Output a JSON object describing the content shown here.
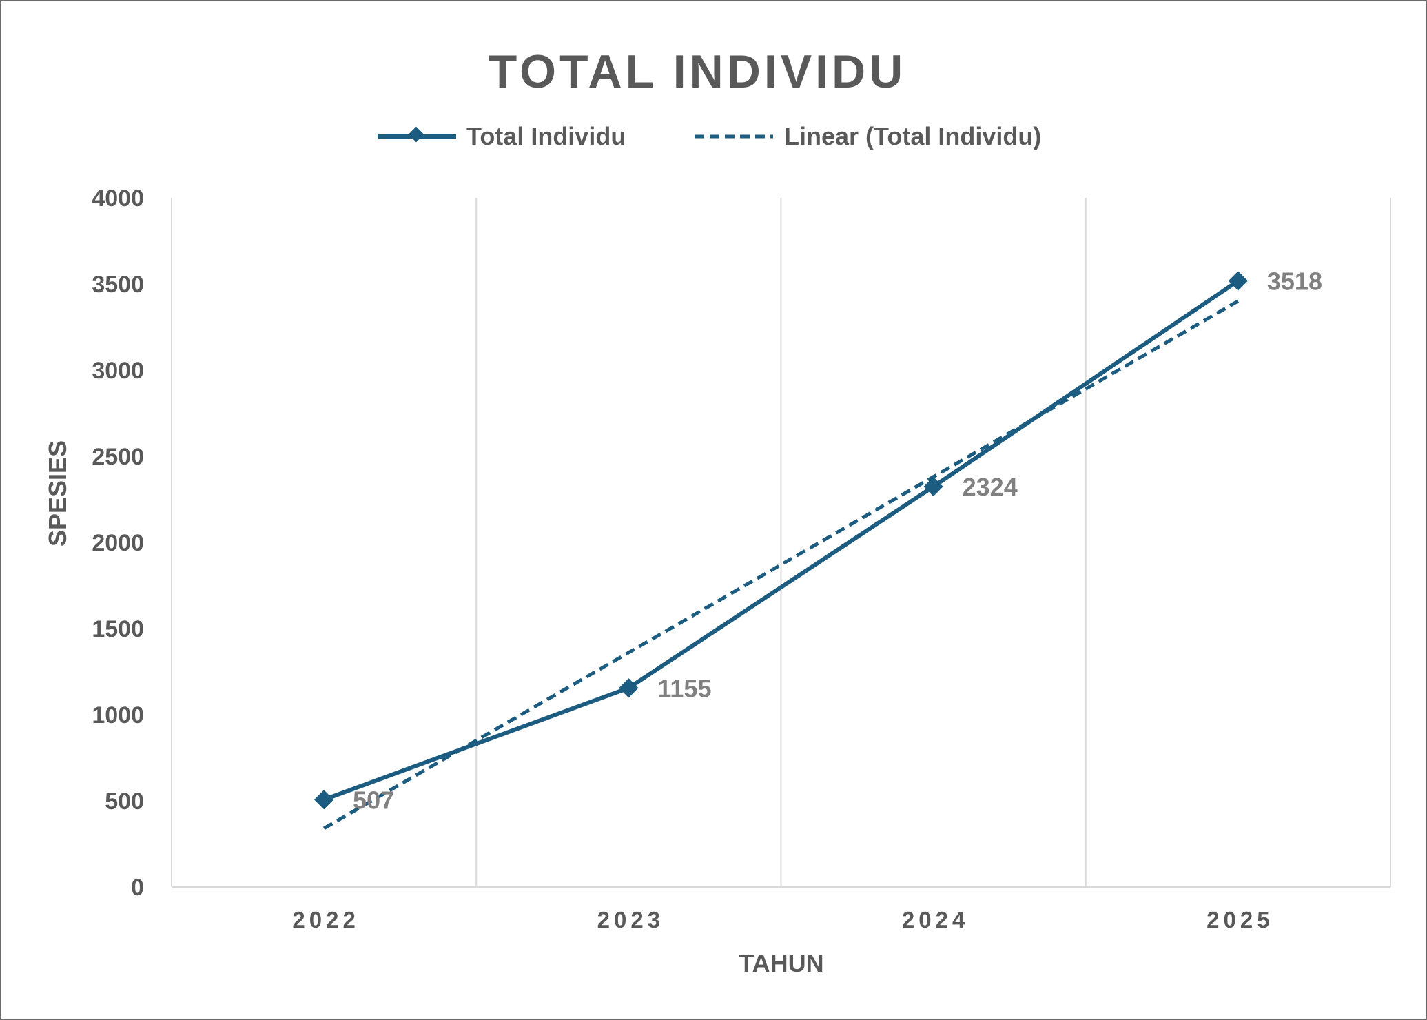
{
  "chart_data": {
    "type": "line",
    "title": "TOTAL INDIVIDU",
    "xlabel": "TAHUN",
    "ylabel": "SPESIES",
    "categories": [
      "2022",
      "2023",
      "2024",
      "2025"
    ],
    "ylim": [
      0,
      4000
    ],
    "yticks": [
      "0",
      "500",
      "1000",
      "1500",
      "2000",
      "2500",
      "3000",
      "3500",
      "4000"
    ],
    "series": [
      {
        "name": "Total Individu",
        "values": [
          507,
          1155,
          2324,
          3518
        ],
        "data_labels": [
          "507",
          "1155",
          "2324",
          "3518"
        ],
        "color": "#1b5c80",
        "marker": "diamond",
        "line_style": "solid"
      },
      {
        "name": "Linear (Total Individu)",
        "values": [
          340.4,
          1360.5,
          2380.6,
          3400.7
        ],
        "color": "#1b5c80",
        "line_style": "dashed",
        "trendline": "linear"
      }
    ],
    "grid": "vertical",
    "legend_position": "top"
  }
}
